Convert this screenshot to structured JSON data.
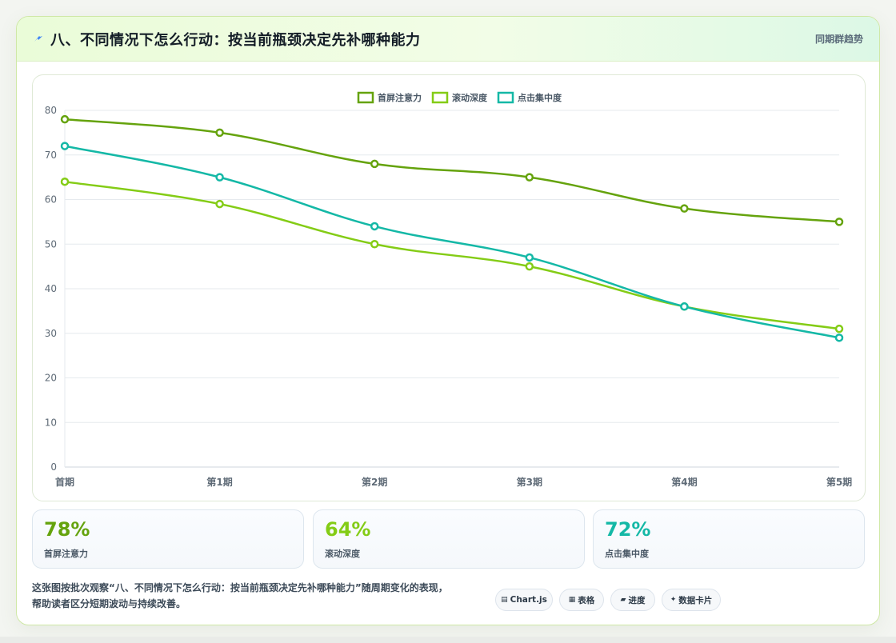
{
  "header": {
    "icon": "lightning-icon",
    "title": "八、不同情况下怎么行动：按当前瓶颈决定先补哪种能力",
    "right_label": "同期群趋势"
  },
  "chart_data": {
    "type": "line",
    "categories": [
      "首期",
      "第1期",
      "第2期",
      "第3期",
      "第4期",
      "第5期"
    ],
    "series": [
      {
        "name": "首屏注意力",
        "color": "#65a30d",
        "values": [
          78,
          75,
          68,
          65,
          58,
          55
        ]
      },
      {
        "name": "滚动深度",
        "color": "#84cc16",
        "values": [
          64,
          59,
          50,
          45,
          36,
          31
        ]
      },
      {
        "name": "点击集中度",
        "color": "#14b8a6",
        "values": [
          72,
          65,
          54,
          47,
          36,
          29
        ]
      }
    ],
    "ylim": [
      0,
      80
    ],
    "yticks": [
      0,
      10,
      20,
      30,
      40,
      50,
      60,
      70,
      80
    ],
    "grid": true,
    "legend": "top-center"
  },
  "stats": [
    {
      "value": "78%",
      "label": "首屏注意力",
      "color": "#65a30d"
    },
    {
      "value": "64%",
      "label": "滚动深度",
      "color": "#84cc16"
    },
    {
      "value": "72%",
      "label": "点击集中度",
      "color": "#14b8a6"
    }
  ],
  "description": {
    "line1": "这张图按批次观察“八、不同情况下怎么行动：按当前瓶颈决定先补哪种能力”随周期变化的表现，",
    "line2": "帮助读者区分短期波动与持续改善。"
  },
  "pills": [
    {
      "icon": "▤",
      "label": "Chart.js"
    },
    {
      "icon": "▦",
      "label": "表格"
    },
    {
      "icon": "▰",
      "label": "进度"
    },
    {
      "icon": "✦",
      "label": "数据卡片"
    }
  ]
}
